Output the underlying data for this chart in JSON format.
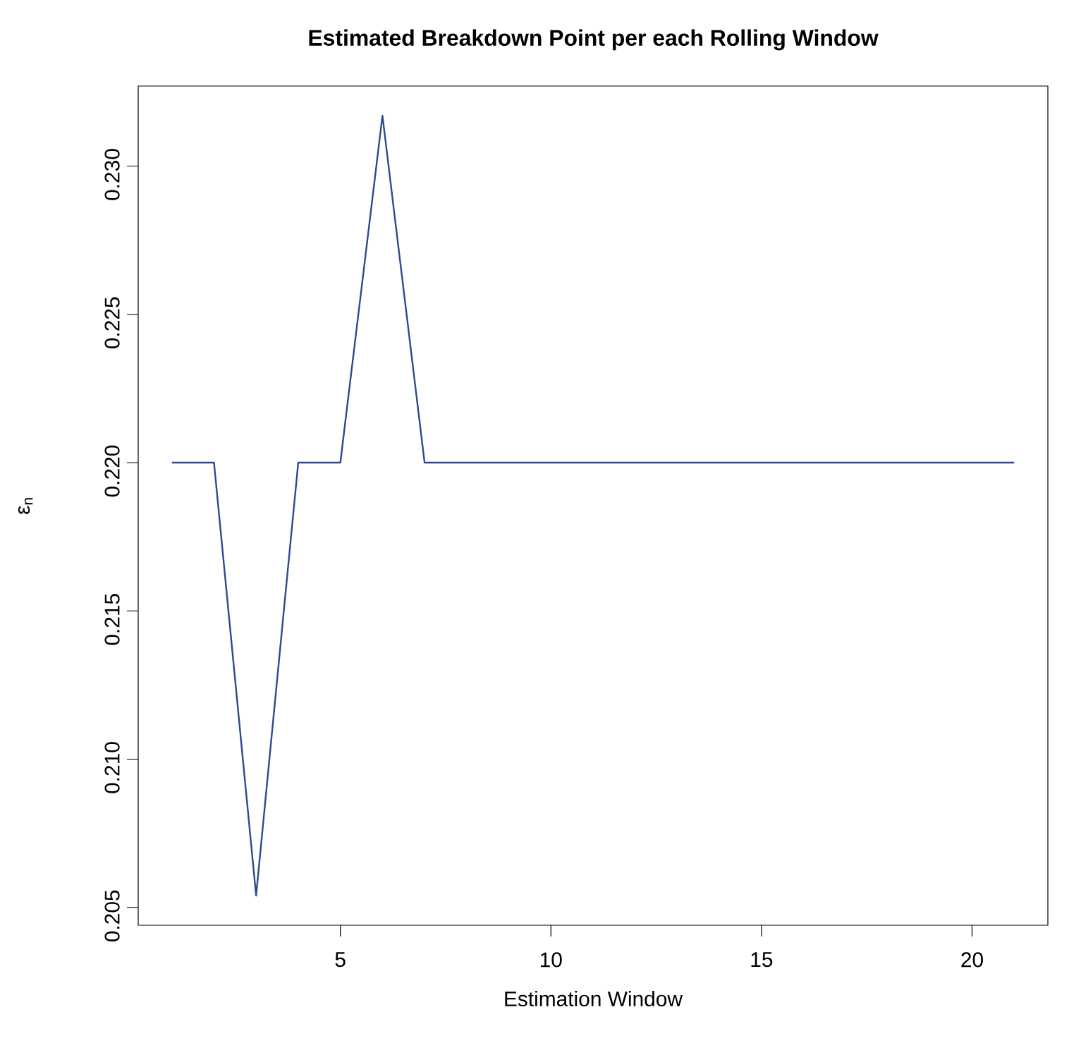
{
  "chart_data": {
    "type": "line",
    "title": "Estimated Breakdown Point per each Rolling Window",
    "xlabel": "Estimation Window",
    "ylabel": "ε$_{n}$",
    "x": [
      1,
      2,
      3,
      4,
      5,
      6,
      7,
      8,
      9,
      10,
      11,
      12,
      13,
      14,
      15,
      16,
      17,
      18,
      19,
      20,
      21
    ],
    "series": [
      {
        "color": "#2b4b8e",
        "values": [
          0.22,
          0.22,
          0.2054,
          0.22,
          0.22,
          0.2317,
          0.22,
          0.22,
          0.22,
          0.22,
          0.22,
          0.22,
          0.22,
          0.22,
          0.22,
          0.22,
          0.22,
          0.22,
          0.22,
          0.22,
          0.22
        ]
      }
    ],
    "xlim": [
      0.2,
      21.8
    ],
    "ylim": [
      0.2044,
      0.2327
    ],
    "xticks": [
      5,
      10,
      15,
      20
    ],
    "yticks": [
      {
        "value": 0.205,
        "label": "0.205"
      },
      {
        "value": 0.21,
        "label": "0.210"
      },
      {
        "value": 0.215,
        "label": "0.215"
      },
      {
        "value": 0.22,
        "label": "0.220"
      },
      {
        "value": 0.225,
        "label": "0.225"
      },
      {
        "value": 0.23,
        "label": "0.230"
      }
    ],
    "grid": false,
    "marker": "none",
    "line_style": "solid"
  }
}
